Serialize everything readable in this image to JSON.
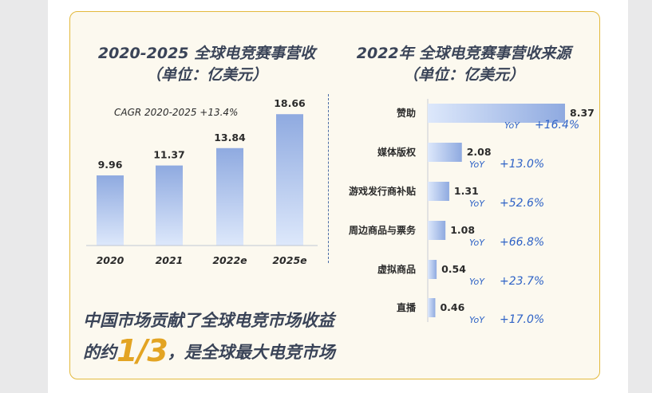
{
  "chart_data": [
    {
      "type": "bar",
      "title": "2020-2025 全球电竞赛事营收",
      "subtitle": "（单位：亿美元）",
      "annotation": "CAGR 2020-2025    +13.4%",
      "categories": [
        "2020",
        "2021",
        "2022e",
        "2025e"
      ],
      "values": [
        9.96,
        11.37,
        13.84,
        18.66
      ],
      "ylim": [
        0,
        20
      ]
    },
    {
      "type": "bar",
      "orientation": "horizontal",
      "title": "2022年 全球电竞赛事营收来源",
      "subtitle": "（单位：亿美元）",
      "categories": [
        "赞助",
        "媒体版权",
        "游戏发行商补贴",
        "周边商品与票务",
        "虚拟商品",
        "直播"
      ],
      "values": [
        8.37,
        2.08,
        1.31,
        1.08,
        0.54,
        0.46
      ],
      "yoy_label": "YoY",
      "yoy": [
        "+16.4%",
        "+13.0%",
        "+52.6%",
        "+66.8%",
        "+23.7%",
        "+17.0%"
      ],
      "xlim": [
        0,
        8.37
      ]
    }
  ],
  "footer": {
    "line1": "中国市场贡献了全球电竞市场收益",
    "line2_prefix": "的约",
    "line2_highlight": "1/3",
    "line2_suffix": "，是全球最大电竞市场"
  },
  "colors": {
    "bar_top": "#8faae0",
    "bar_bottom": "#dde8fb",
    "yoy": "#2f63c6",
    "text": "#3a4458",
    "accent": "#e3a423"
  }
}
